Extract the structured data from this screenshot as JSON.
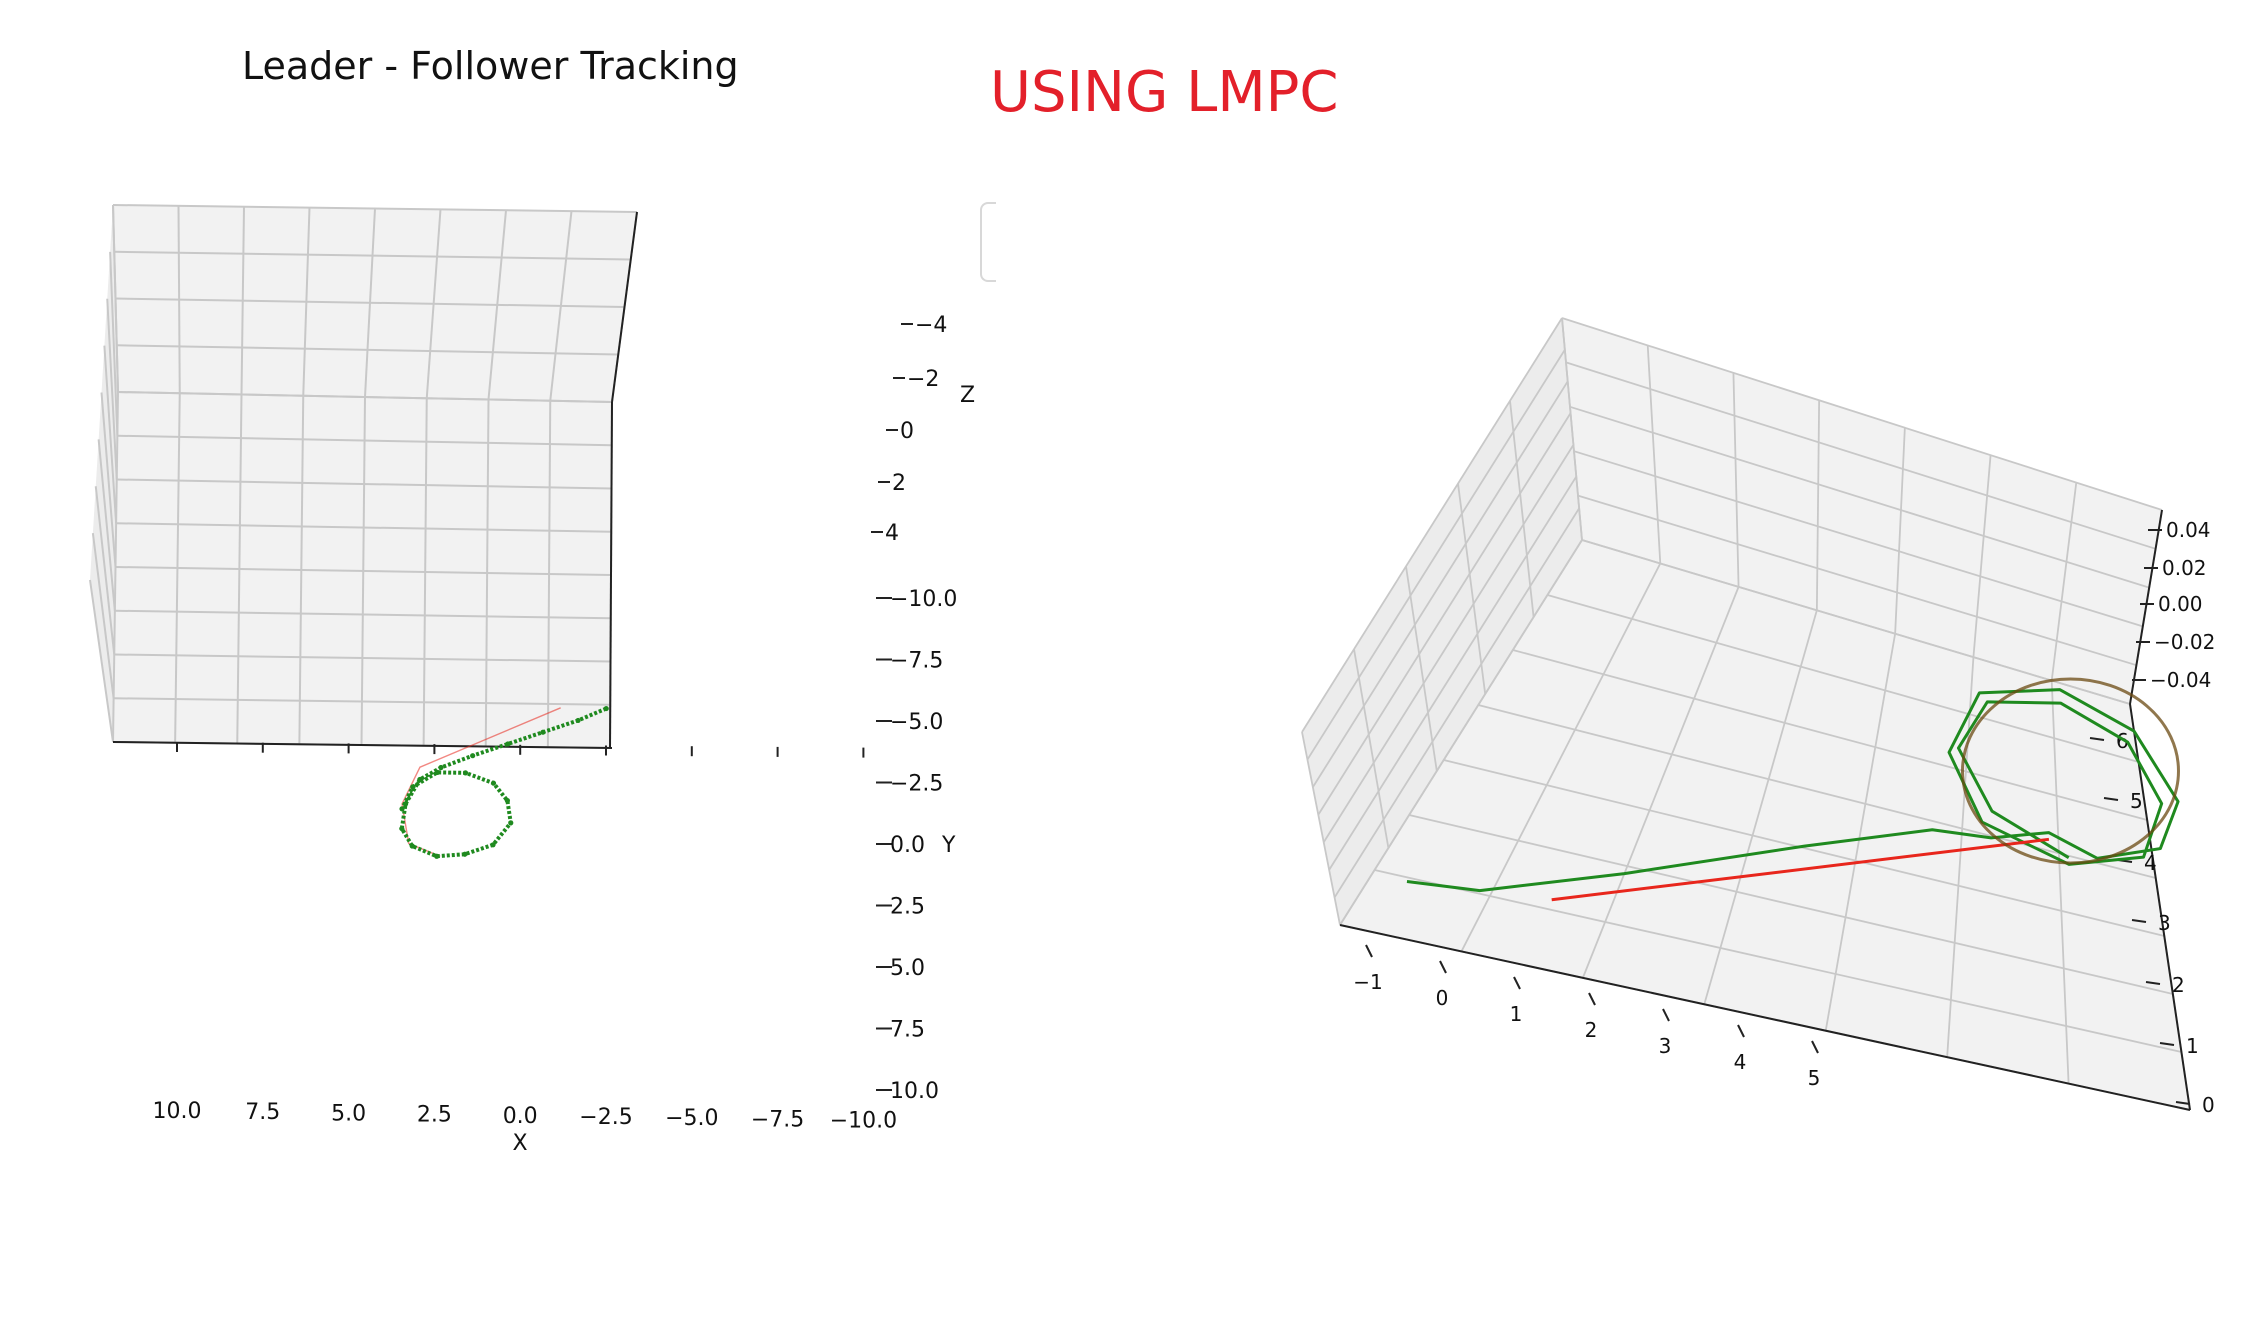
{
  "left_title": "Leader - Follower Tracking",
  "right_title": "USING LMPC",
  "colors": {
    "leader": "#e8261c",
    "follower": "#1f8a1f",
    "pane": "#f2f2f2",
    "grid": "#c8c8c8"
  },
  "chart_data": [
    {
      "type": "line",
      "projection": "3d",
      "title": "Leader - Follower Tracking",
      "xlabel": "X",
      "ylabel": "Y",
      "zlabel": "Z",
      "xlim": [
        -10,
        10
      ],
      "ylim": [
        -10,
        10
      ],
      "zlim": [
        -4,
        4
      ],
      "x_ticks": [
        "10.0",
        "7.5",
        "5.0",
        "2.5",
        "0.0",
        "−2.5",
        "−5.0",
        "−7.5",
        "−10.0"
      ],
      "y_ticks": [
        "−10.0",
        "−7.5",
        "−5.0",
        "−2.5",
        "0.0",
        "2.5",
        "5.0",
        "7.5",
        "10.0"
      ],
      "z_ticks": [
        "−4",
        "−2",
        "0",
        "2",
        "4"
      ],
      "grid": true,
      "series": [
        {
          "role": "follower",
          "marker": "dots",
          "points": [
            [
              -2.3,
              -5.0
            ],
            [
              -1.5,
              -4.5
            ],
            [
              -0.5,
              -4.0
            ],
            [
              0.5,
              -3.5
            ],
            [
              1.5,
              -3.0
            ],
            [
              2.4,
              -2.5
            ],
            [
              3.0,
              -2.0
            ],
            [
              3.4,
              -1.0
            ],
            [
              3.5,
              0.0
            ],
            [
              3.2,
              0.7
            ],
            [
              2.5,
              1.1
            ],
            [
              1.7,
              1.0
            ],
            [
              0.9,
              0.6
            ],
            [
              0.4,
              -0.3
            ],
            [
              0.5,
              -1.2
            ],
            [
              0.9,
              -1.9
            ],
            [
              1.7,
              -2.3
            ],
            [
              2.5,
              -2.3
            ],
            [
              3.2,
              -1.7
            ],
            [
              3.5,
              -0.8
            ]
          ]
        },
        {
          "role": "leader",
          "marker": "line",
          "points": [
            [
              -1.0,
              -5.0
            ],
            [
              3.0,
              -2.5
            ],
            [
              3.5,
              -1.0
            ],
            [
              3.3,
              0.6
            ],
            [
              2.4,
              1.1
            ]
          ]
        }
      ]
    },
    {
      "type": "line",
      "projection": "3d",
      "xlim": [
        -1.5,
        5.5
      ],
      "ylim": [
        0,
        6
      ],
      "zlim": [
        -0.05,
        0.05
      ],
      "x_ticks": [
        "−1",
        "0",
        "1",
        "2",
        "3",
        "4",
        "5"
      ],
      "y_ticks": [
        "0",
        "1",
        "2",
        "3",
        "4",
        "5",
        "6"
      ],
      "z_ticks": [
        "0.04",
        "0.02",
        "0.00",
        "−0.02",
        "−0.04"
      ],
      "grid": true,
      "series": [
        {
          "role": "follower",
          "marker": "line",
          "points": [
            [
              -1.2,
              0.8
            ],
            [
              -0.6,
              0.9
            ],
            [
              0.5,
              1.6
            ],
            [
              2.0,
              2.6
            ],
            [
              3.2,
              3.3
            ],
            [
              3.8,
              3.4
            ],
            [
              4.4,
              3.7
            ],
            [
              4.9,
              3.5
            ],
            [
              5.6,
              3.9
            ],
            [
              5.9,
              4.7
            ],
            [
              5.5,
              5.6
            ],
            [
              4.6,
              5.9
            ],
            [
              3.6,
              5.5
            ],
            [
              3.3,
              4.5
            ],
            [
              3.7,
              3.6
            ],
            [
              4.6,
              3.3
            ],
            [
              5.4,
              3.7
            ],
            [
              5.7,
              4.6
            ],
            [
              5.4,
              5.4
            ],
            [
              4.6,
              5.7
            ],
            [
              3.7,
              5.4
            ],
            [
              3.4,
              4.6
            ],
            [
              3.8,
              3.8
            ],
            [
              4.6,
              3.4
            ]
          ]
        },
        {
          "role": "leader",
          "marker": "line",
          "points": [
            [
              0.0,
              1.0
            ],
            [
              4.4,
              3.6
            ]
          ]
        }
      ]
    }
  ]
}
